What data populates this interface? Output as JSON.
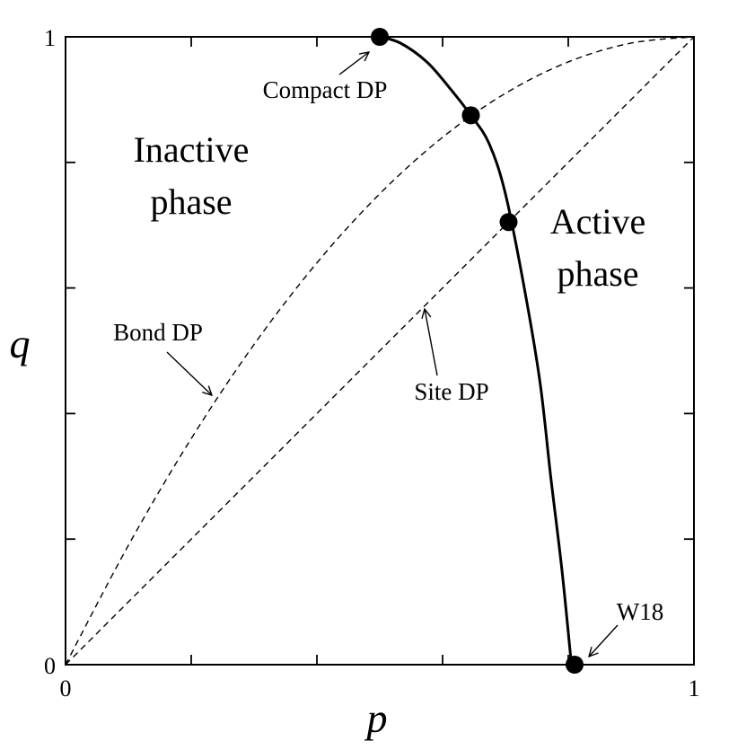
{
  "chart_data": {
    "type": "line",
    "title": "",
    "xlabel": "p",
    "ylabel": "q",
    "xlim": [
      0,
      1
    ],
    "ylim": [
      0,
      1
    ],
    "x_tick_labels": [
      "0",
      "1"
    ],
    "y_tick_labels": [
      "0",
      "1"
    ],
    "minor_ticks": [
      0.2,
      0.4,
      0.6,
      0.8
    ],
    "grid": false,
    "series": [
      {
        "style": "solid",
        "color": "#000000",
        "x": [
          0.5,
          0.533,
          0.575,
          0.61,
          0.645,
          0.674,
          0.7,
          0.73,
          0.755,
          0.772,
          0.79,
          0.805
        ],
        "y": [
          1.0,
          0.99,
          0.96,
          0.92,
          0.875,
          0.83,
          0.75,
          0.6,
          0.45,
          0.3,
          0.15,
          0.0
        ]
      },
      {
        "style": "dashed",
        "color": "#000000",
        "x": [
          0,
          0.1,
          0.2,
          0.3,
          0.4,
          0.5,
          0.6,
          0.7,
          0.8,
          0.9,
          1.0
        ],
        "y": [
          0,
          0.19,
          0.36,
          0.51,
          0.64,
          0.75,
          0.84,
          0.91,
          0.96,
          0.99,
          1.0
        ]
      },
      {
        "style": "dashed",
        "color": "#000000",
        "x": [
          0,
          1
        ],
        "y": [
          0,
          1
        ]
      }
    ],
    "points": [
      {
        "x": 0.5,
        "y": 1.0
      },
      {
        "x": 0.645,
        "y": 0.875
      },
      {
        "x": 0.705,
        "y": 0.705
      },
      {
        "x": 0.81,
        "y": 0.0
      }
    ],
    "region_labels": {
      "inactive_line1": "Inactive",
      "inactive_line2": "phase",
      "active_line1": "Active",
      "active_line2": "phase"
    },
    "annotations": {
      "compact": "Compact DP",
      "bond": "Bond DP",
      "site": "Site DP",
      "w18": "W18"
    }
  }
}
